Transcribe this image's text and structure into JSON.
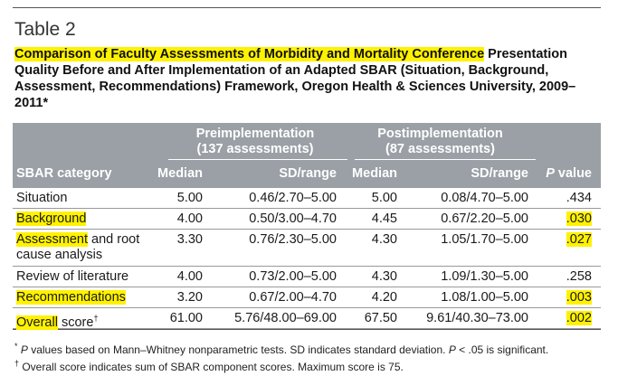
{
  "table_label": "Table 2",
  "caption": {
    "highlighted": "Comparison of Faculty Assessments of Morbidity and Mortality Conference",
    "rest": "Presentation Quality Before and After Implementation of an Adapted SBAR (Situation, Background, Assessment, Recommendations) Framework, Oregon Health & Sciences University, 2009–2011",
    "marker": "*"
  },
  "header": {
    "group_pre": "Preimplementation",
    "group_pre_sub": "(137 assessments)",
    "group_post": "Postimplementation",
    "group_post_sub": "(87 assessments)",
    "col_category": "SBAR category",
    "col_median_pre": "Median",
    "col_sd_pre": "SD/range",
    "col_median_post": "Median",
    "col_sd_post": "SD/range",
    "col_p": "P value"
  },
  "rows": [
    {
      "category": "Situation",
      "category_hl": "",
      "category_rest": "",
      "med_pre": "5.00",
      "sd_pre": "0.46/2.70–5.00",
      "med_post": "5.00",
      "sd_post": "0.08/4.70–5.00",
      "p": ".434",
      "p_hl": false
    },
    {
      "category": "",
      "category_hl": "Background",
      "category_rest": "",
      "med_pre": "4.00",
      "sd_pre": "0.50/3.00–4.70",
      "med_post": "4.45",
      "sd_post": "0.67/2.20–5.00",
      "p": ".030",
      "p_hl": true
    },
    {
      "category": "",
      "category_hl": "Assessment",
      "category_rest": " and root cause analysis",
      "med_pre": "3.30",
      "sd_pre": "0.76/2.30–5.00",
      "med_post": "4.30",
      "sd_post": "1.05/1.70–5.00",
      "p": ".027",
      "p_hl": true
    },
    {
      "category": "Review of literature",
      "category_hl": "",
      "category_rest": "",
      "med_pre": "4.00",
      "sd_pre": "0.73/2.00–5.00",
      "med_post": "4.30",
      "sd_post": "1.09/1.30–5.00",
      "p": ".258",
      "p_hl": false
    },
    {
      "category": "",
      "category_hl": "Recommendations",
      "category_rest": "",
      "med_pre": "3.20",
      "sd_pre": "0.67/2.00–4.70",
      "med_post": "4.20",
      "sd_post": "1.08/1.00–5.00",
      "p": ".003",
      "p_hl": true
    },
    {
      "category": "",
      "category_hl": "Overall",
      "category_rest": " score",
      "category_sup": "†",
      "med_pre": "61.00",
      "sd_pre": "5.76/48.00–69.00",
      "med_post": "67.50",
      "sd_post": "9.61/40.30–73.00",
      "p": ".002",
      "p_hl": true
    }
  ],
  "footnotes": {
    "fn1_marker": "*",
    "fn1_italic": "P",
    "fn1_text": " values based on Mann–Whitney nonparametric tests. SD indicates standard deviation. ",
    "fn1_italic2": "P",
    "fn1_text2": " < .05 is significant.",
    "fn2_marker": "†",
    "fn2_text": " Overall score indicates sum of SBAR component scores. Maximum score is 75."
  }
}
